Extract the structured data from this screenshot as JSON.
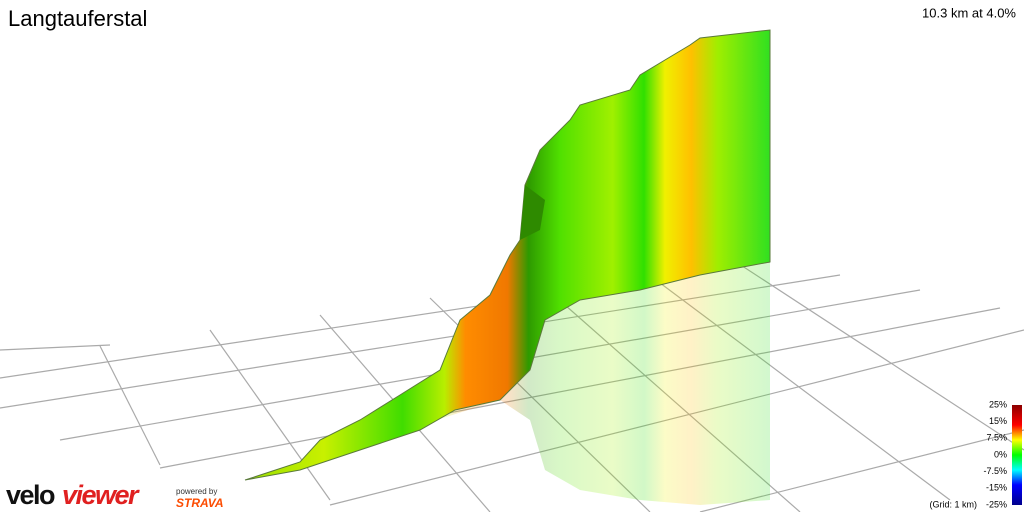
{
  "header": {
    "title": "Langtauferstal",
    "summary": "10.3 km at 4.0%"
  },
  "legend": {
    "labels": [
      "25%",
      "15%",
      "7.5%",
      "0%",
      "-7.5%",
      "-15%",
      "-25%"
    ],
    "grid_note": "(Grid: 1 km)"
  },
  "footer": {
    "logo_part1": "velo",
    "logo_part2": "viewer",
    "powered": "powered by",
    "strava": "STRAVA"
  }
}
